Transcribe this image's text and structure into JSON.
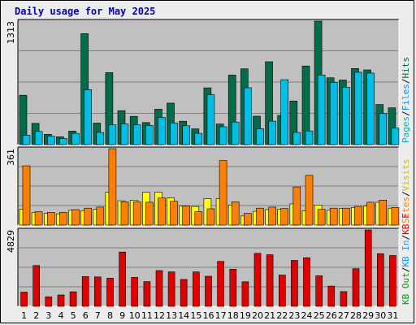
{
  "chart_data": {
    "type": "bar",
    "title": "Daily usage for May 2025",
    "categories": [
      "1",
      "2",
      "3",
      "4",
      "5",
      "6",
      "7",
      "8",
      "9",
      "10",
      "11",
      "12",
      "13",
      "14",
      "15",
      "16",
      "17",
      "18",
      "19",
      "20",
      "21",
      "22",
      "23",
      "24",
      "25",
      "26",
      "27",
      "28",
      "29",
      "30",
      "31"
    ],
    "weekend_days": [
      "3",
      "4",
      "10",
      "11",
      "17",
      "18",
      "24",
      "25",
      "31"
    ],
    "panels": [
      {
        "id": "hits",
        "ymax": 1313,
        "ymax_label": "1313",
        "series": [
          {
            "name": "Hits",
            "color": "#006c4c",
            "values": [
              525,
              226,
              110,
              84,
              144,
              1180,
              229,
              765,
              361,
              301,
              235,
              377,
              441,
              249,
              168,
              604,
              219,
              739,
              806,
              302,
              881,
              311,
              464,
              836,
              1313,
              711,
              687,
              809,
              795,
              427,
              391
            ]
          },
          {
            "name": "Files",
            "color": "#00bfe6",
            "values": [
              100,
              140,
              90,
              66,
              120,
              585,
              130,
              210,
              220,
              210,
              205,
              290,
              230,
              200,
              120,
              530,
              190,
              240,
              605,
              170,
              250,
              690,
              130,
              145,
              740,
              660,
              610,
              770,
              760,
              330,
              175
            ]
          },
          {
            "name": "Pages",
            "color": "#0040c0",
            "values": [
              0,
              0,
              0,
              0,
              0,
              0,
              0,
              0,
              0,
              0,
              0,
              0,
              0,
              0,
              0,
              0,
              0,
              0,
              0,
              0,
              0,
              0,
              0,
              0,
              0,
              0,
              0,
              0,
              0,
              0,
              0
            ]
          }
        ],
        "axis_labels": [
          {
            "text": "Hits",
            "color": "#006c4c"
          },
          {
            "text": "/",
            "color": "#000000"
          },
          {
            "text": "Files",
            "color": "#0090ff"
          },
          {
            "text": "/",
            "color": "#000000"
          },
          {
            "text": "Pages",
            "color": "#00b0c0"
          }
        ]
      },
      {
        "id": "visits",
        "ymax": 361,
        "ymax_label": "361",
        "series": [
          {
            "name": "Visits",
            "color": "#ffff00",
            "values": [
              75,
              60,
              55,
              53,
              70,
              68,
              75,
              155,
              115,
              118,
              155,
              155,
              128,
              90,
              88,
              125,
              125,
              95,
              43,
              65,
              73,
              75,
              100,
              68,
              95,
              70,
              78,
              83,
              90,
              108,
              80
            ]
          },
          {
            "name": "Sites",
            "color": "#ff8000",
            "values": [
              280,
              63,
              60,
              60,
              73,
              80,
              85,
              361,
              110,
              110,
              108,
              128,
              112,
              90,
              63,
              77,
              305,
              110,
              55,
              80,
              85,
              78,
              180,
              235,
              75,
              80,
              80,
              88,
              108,
              118,
              83
            ]
          }
        ],
        "axis_labels": [
          {
            "text": "Visits",
            "color": "#d0c000"
          },
          {
            "text": "/",
            "color": "#000000"
          },
          {
            "text": "Sites",
            "color": "#ff8000"
          }
        ]
      },
      {
        "id": "kbytes",
        "ymax": 4829,
        "ymax_label": "4829",
        "series": [
          {
            "name": "KB F",
            "color": "#e00000",
            "values": [
              900,
              2580,
              600,
              720,
              920,
              1880,
              1860,
              1780,
              3430,
              1830,
              1560,
              2260,
              2180,
              1700,
              2180,
              1900,
              2840,
              2350,
              1550,
              3350,
              3260,
              1980,
              2900,
              3070,
              1930,
              1280,
              930,
              2380,
              4829,
              3330,
              3210
            ]
          }
        ],
        "axis_labels": [
          {
            "text": "KB F",
            "color": "#e00000"
          },
          {
            "text": "/",
            "color": "#000000"
          },
          {
            "text": "KB In",
            "color": "#00a0ff"
          },
          {
            "text": "/",
            "color": "#000000"
          },
          {
            "text": "KB Out",
            "color": "#00a000"
          }
        ]
      }
    ],
    "grid": true
  },
  "colors": {
    "plot_bg": "#c0c0c0",
    "weekday_label": "#000000",
    "weekend_label": "#008040"
  }
}
